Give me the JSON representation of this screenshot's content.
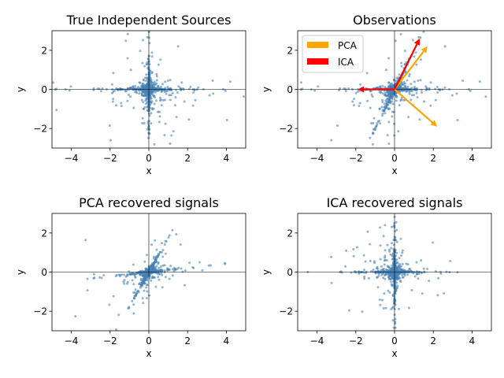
{
  "chart_data": [
    {
      "type": "scatter",
      "title": "True Independent Sources",
      "xlabel": "x",
      "ylabel": "y",
      "xlim": [
        -5,
        5
      ],
      "ylim": [
        -3,
        3
      ],
      "xticks": [
        -4,
        -2,
        0,
        2,
        4
      ],
      "yticks": [
        -2,
        0,
        2
      ],
      "point_color": "#4682b4"
    },
    {
      "type": "scatter",
      "title": "Observations",
      "xlabel": "x",
      "ylabel": "y",
      "xlim": [
        -5,
        5
      ],
      "ylim": [
        -3,
        3
      ],
      "xticks": [
        -4,
        -2,
        0,
        2,
        4
      ],
      "yticks": [
        -2,
        0,
        2
      ],
      "point_color": "#4682b4",
      "legend": {
        "placement": "top-left",
        "entries": [
          {
            "label": "PCA",
            "color": "#ffa500"
          },
          {
            "label": "ICA",
            "color": "#ff0000"
          }
        ]
      },
      "arrows": [
        {
          "series": "PCA",
          "color": "#ffa500",
          "from": [
            0,
            0
          ],
          "to": [
            1.7,
            2.2
          ]
        },
        {
          "series": "PCA",
          "color": "#ffa500",
          "from": [
            0,
            0
          ],
          "to": [
            2.2,
            -1.9
          ]
        },
        {
          "series": "ICA",
          "color": "#ff0000",
          "from": [
            0,
            0
          ],
          "to": [
            1.3,
            2.6
          ]
        },
        {
          "series": "ICA",
          "color": "#ff0000",
          "from": [
            0,
            0
          ],
          "to": [
            -1.9,
            0
          ]
        }
      ]
    },
    {
      "type": "scatter",
      "title": "PCA recovered signals",
      "xlabel": "x",
      "ylabel": "y",
      "xlim": [
        -5,
        5
      ],
      "ylim": [
        -3,
        3
      ],
      "xticks": [
        -4,
        -2,
        0,
        2,
        4
      ],
      "yticks": [
        -2,
        0,
        2
      ],
      "point_color": "#4682b4"
    },
    {
      "type": "scatter",
      "title": "ICA recovered signals",
      "xlabel": "x",
      "ylabel": "y",
      "xlim": [
        -5,
        5
      ],
      "ylim": [
        -3,
        3
      ],
      "xticks": [
        -4,
        -2,
        0,
        2,
        4
      ],
      "yticks": [
        -2,
        0,
        2
      ],
      "point_color": "#4682b4"
    }
  ]
}
